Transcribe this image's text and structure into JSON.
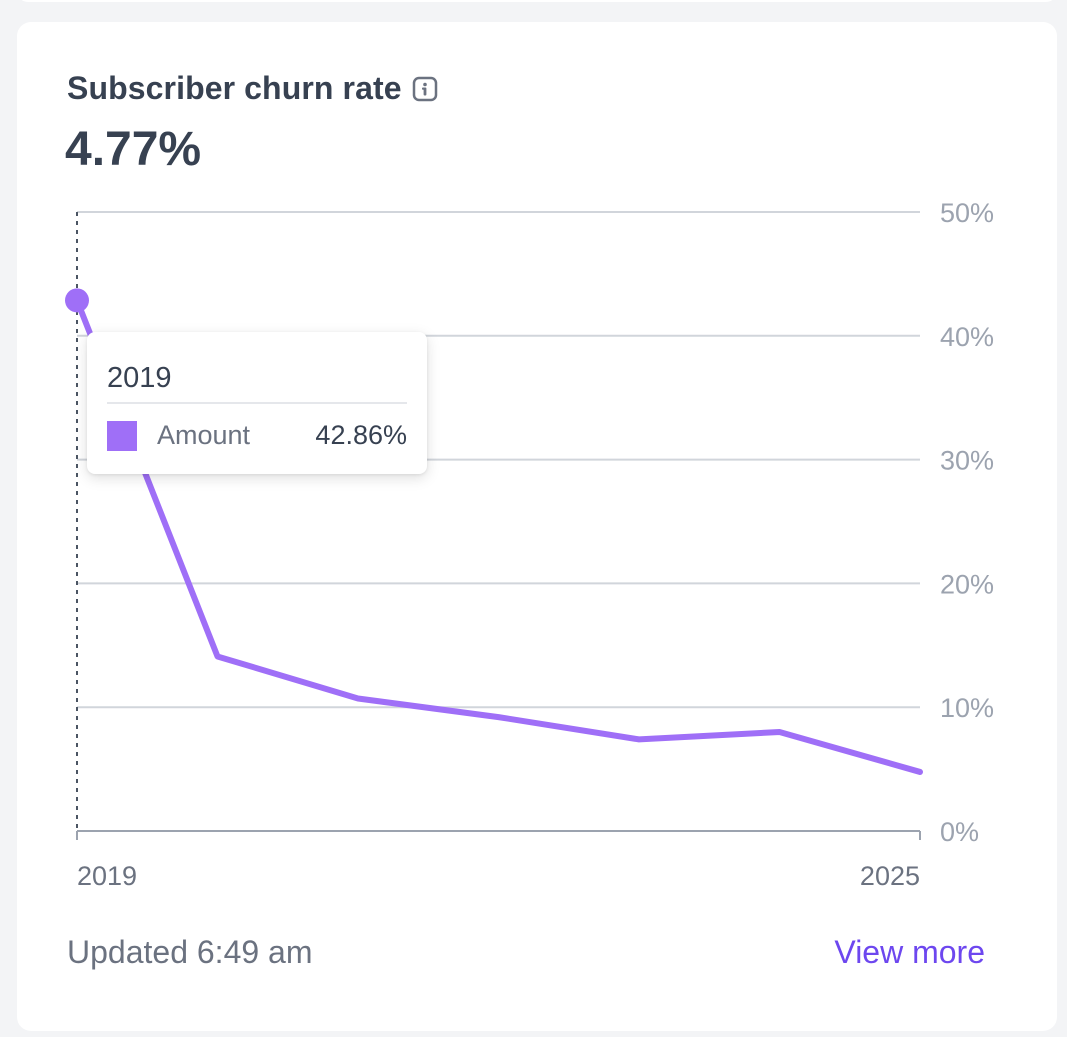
{
  "card": {
    "title": "Subscriber churn rate",
    "info_icon": "info-icon",
    "headline_value": "4.77%",
    "footer_updated": "Updated 6:49 am",
    "footer_link": "View more"
  },
  "tooltip": {
    "title": "2019",
    "series_label": "Amount",
    "series_value": "42.86%"
  },
  "colors": {
    "line": "#9f6ff7",
    "grid": "#d1d5db",
    "axis": "#9ca3af",
    "tick_text": "#9ca3af",
    "link": "#6d47ef"
  },
  "chart_data": {
    "type": "line",
    "title": "Subscriber churn rate",
    "series": [
      {
        "name": "Amount",
        "x": [
          0,
          1,
          2,
          3,
          4,
          5,
          6
        ],
        "values": [
          42.86,
          14.1,
          10.7,
          9.2,
          7.4,
          8.0,
          4.77
        ]
      }
    ],
    "x_tick_labels": [
      "2019",
      "2025"
    ],
    "x_tick_positions": [
      0,
      6
    ],
    "xlim": [
      0,
      6
    ],
    "ylim": [
      0,
      50
    ],
    "y_ticks": [
      0,
      10,
      20,
      30,
      40,
      50
    ],
    "y_tick_labels": [
      "0%",
      "10%",
      "20%",
      "30%",
      "40%",
      "50%"
    ],
    "y_axis_side": "right",
    "grid": true,
    "highlight_index": 0
  }
}
